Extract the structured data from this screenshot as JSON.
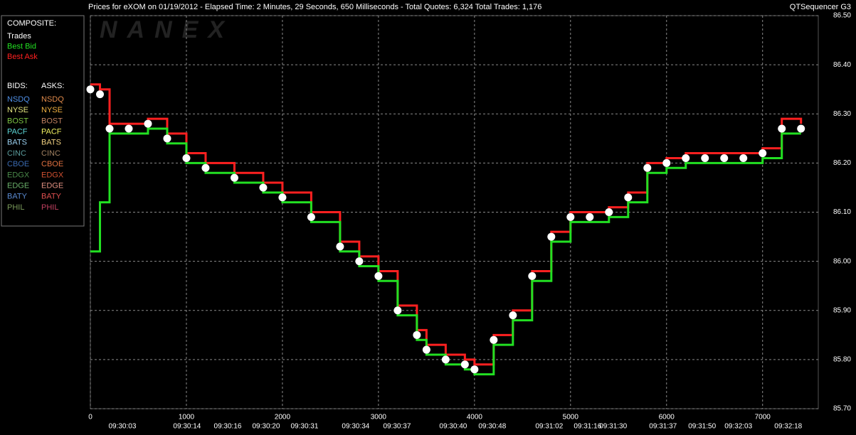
{
  "chart_data": {
    "type": "line",
    "title": "Prices for  eXOM  on  01/19/2012  -  Elapsed Time: 2 Minutes, 29 Seconds, 650 Milliseconds  -  Total Quotes: 6,324  Total Trades: 1,176",
    "app_name": "QTSequencer G3",
    "watermark": "NANEX",
    "legend_title": "COMPOSITE:",
    "x": [
      0,
      100,
      200,
      400,
      600,
      800,
      1000,
      1200,
      1500,
      1800,
      2000,
      2300,
      2600,
      2800,
      3000,
      3200,
      3400,
      3500,
      3700,
      3900,
      4000,
      4200,
      4400,
      4600,
      4800,
      5000,
      5200,
      5400,
      5600,
      5800,
      6000,
      6200,
      6400,
      6600,
      6800,
      7000,
      7200,
      7400
    ],
    "series": [
      {
        "name": "Best Ask",
        "color": "#ff2020",
        "style": "step",
        "values": [
          86.36,
          86.35,
          86.28,
          86.28,
          86.29,
          86.26,
          86.22,
          86.2,
          86.18,
          86.16,
          86.14,
          86.1,
          86.04,
          86.01,
          85.98,
          85.91,
          85.86,
          85.83,
          85.81,
          85.8,
          85.79,
          85.85,
          85.9,
          85.98,
          86.06,
          86.1,
          86.1,
          86.11,
          86.14,
          86.2,
          86.21,
          86.22,
          86.22,
          86.22,
          86.22,
          86.23,
          86.29,
          86.28
        ]
      },
      {
        "name": "Best Bid",
        "color": "#22e022",
        "style": "step",
        "values": [
          86.02,
          86.12,
          86.26,
          86.26,
          86.27,
          86.24,
          86.2,
          86.18,
          86.16,
          86.14,
          86.12,
          86.08,
          86.02,
          85.99,
          85.96,
          85.89,
          85.84,
          85.81,
          85.79,
          85.78,
          85.77,
          85.83,
          85.88,
          85.96,
          86.04,
          86.08,
          86.08,
          86.09,
          86.12,
          86.18,
          86.19,
          86.2,
          86.2,
          86.2,
          86.2,
          86.21,
          86.26,
          86.26
        ]
      },
      {
        "name": "Trades",
        "color": "#ffffff",
        "style": "dots",
        "values": [
          86.35,
          86.34,
          86.27,
          86.27,
          86.28,
          86.25,
          86.21,
          86.19,
          86.17,
          86.15,
          86.13,
          86.09,
          86.03,
          86.0,
          85.97,
          85.9,
          85.85,
          85.82,
          85.8,
          85.79,
          85.78,
          85.84,
          85.89,
          85.97,
          86.05,
          86.09,
          86.09,
          86.1,
          86.13,
          86.19,
          86.2,
          86.21,
          86.21,
          86.21,
          86.21,
          86.22,
          86.27,
          86.27
        ]
      }
    ],
    "xlim": [
      0,
      7580
    ],
    "xticks": [
      0,
      1000,
      2000,
      3000,
      4000,
      5000,
      6000,
      7000
    ],
    "ylim": [
      85.7,
      86.5
    ],
    "yticks": [
      {
        "value": 85.7,
        "label": "85.70"
      },
      {
        "value": 85.8,
        "label": "85.80"
      },
      {
        "value": 85.9,
        "label": "85.90"
      },
      {
        "value": 86.0,
        "label": "86.00"
      },
      {
        "value": 86.1,
        "label": "86.10"
      },
      {
        "value": 86.2,
        "label": "86.20"
      },
      {
        "value": 86.3,
        "label": "86.30"
      },
      {
        "value": 86.4,
        "label": "86.40"
      },
      {
        "value": 86.5,
        "label": "86.50"
      }
    ],
    "time_labels": [
      {
        "value": 333,
        "label": "09:30:03"
      },
      {
        "value": 1007,
        "label": "09:30:14"
      },
      {
        "value": 1430,
        "label": "09:30:16"
      },
      {
        "value": 1830,
        "label": "09:30:20"
      },
      {
        "value": 2230,
        "label": "09:30:31"
      },
      {
        "value": 2763,
        "label": "09:30:34"
      },
      {
        "value": 3193,
        "label": "09:30:37"
      },
      {
        "value": 3778,
        "label": "09:30:40"
      },
      {
        "value": 4185,
        "label": "09:30:48"
      },
      {
        "value": 4778,
        "label": "09:31:02"
      },
      {
        "value": 5178,
        "label": "09:31:16"
      },
      {
        "value": 5444,
        "label": "09:31:30"
      },
      {
        "value": 5963,
        "label": "09:31:37"
      },
      {
        "value": 6370,
        "label": "09:31:50"
      },
      {
        "value": 6748,
        "label": "09:32:03"
      },
      {
        "value": 7267,
        "label": "09:32:18"
      }
    ],
    "grid": true,
    "exchanges": {
      "bids_title": "BIDS:",
      "asks_title": "ASKS:",
      "bids": [
        {
          "name": "NSDQ",
          "color": "#4f8fe6"
        },
        {
          "name": "NYSE",
          "color": "#e6e680"
        },
        {
          "name": "BOST",
          "color": "#7ac142"
        },
        {
          "name": "PACF",
          "color": "#5cd6d6"
        },
        {
          "name": "BATS",
          "color": "#9ad0f0"
        },
        {
          "name": "CINC",
          "color": "#5a9a9a"
        },
        {
          "name": "CBOE",
          "color": "#3a6ab0"
        },
        {
          "name": "EDGX",
          "color": "#4a8a4a"
        },
        {
          "name": "EDGE",
          "color": "#6ab06a"
        },
        {
          "name": "BATY",
          "color": "#5a8ad0"
        },
        {
          "name": "PHIL",
          "color": "#7a9a5a"
        }
      ],
      "asks": [
        {
          "name": "NSDQ",
          "color": "#e08a4a"
        },
        {
          "name": "NYSE",
          "color": "#f0b040"
        },
        {
          "name": "BOST",
          "color": "#c08060"
        },
        {
          "name": "PACF",
          "color": "#f0f060"
        },
        {
          "name": "BATS",
          "color": "#f0d080"
        },
        {
          "name": "CINC",
          "color": "#a08060"
        },
        {
          "name": "CBOE",
          "color": "#e07040"
        },
        {
          "name": "EDGX",
          "color": "#d05030"
        },
        {
          "name": "EDGE",
          "color": "#e09080"
        },
        {
          "name": "BATY",
          "color": "#e05050"
        },
        {
          "name": "PHIL",
          "color": "#c04060"
        }
      ]
    }
  }
}
